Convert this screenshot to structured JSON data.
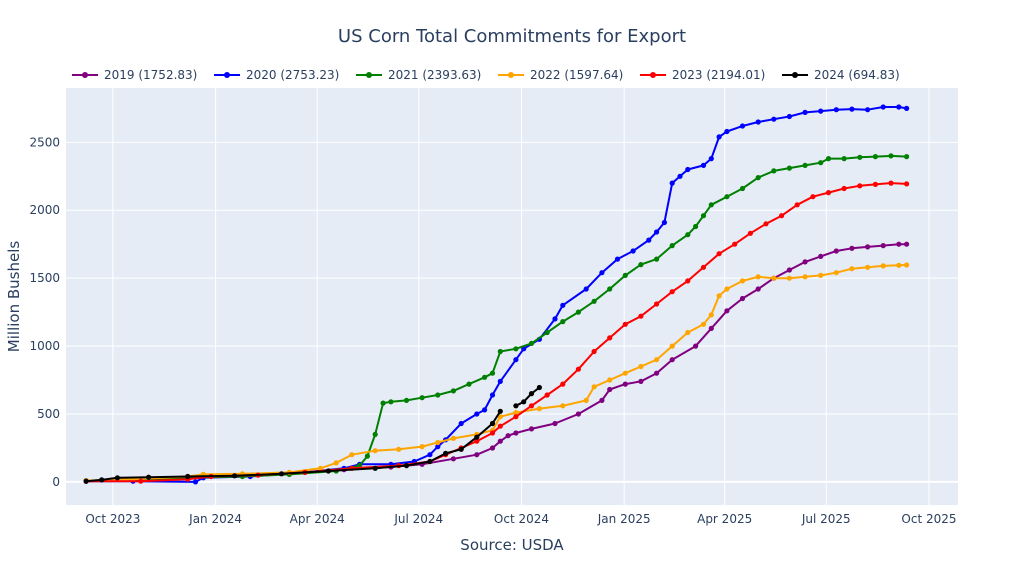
{
  "chart_data": {
    "type": "line",
    "title": "US Corn Total Commitments for Export",
    "xlabel": "Source: USDA",
    "ylabel": "Million Bushels",
    "ylim": [
      -170,
      2900
    ],
    "xrange": [
      "2023-08-20",
      "2025-10-27"
    ],
    "y_ticks": [
      0,
      500,
      1000,
      1500,
      2000,
      2500
    ],
    "x_ticks": [
      {
        "date": "2023-10-01",
        "label": "Oct 2023"
      },
      {
        "date": "2024-01-01",
        "label": "Jan 2024"
      },
      {
        "date": "2024-04-01",
        "label": "Apr 2024"
      },
      {
        "date": "2024-07-01",
        "label": "Jul 2024"
      },
      {
        "date": "2024-10-01",
        "label": "Oct 2024"
      },
      {
        "date": "2025-01-01",
        "label": "Jan 2025"
      },
      {
        "date": "2025-04-01",
        "label": "Apr 2025"
      },
      {
        "date": "2025-07-01",
        "label": "Jul 2025"
      },
      {
        "date": "2025-10-01",
        "label": "Oct 2025"
      }
    ],
    "grid": true,
    "legend": "top, horizontal",
    "series": [
      {
        "name": "2019 (1752.83)",
        "color": "#800080",
        "points": [
          [
            "2023-09-07",
            5
          ],
          [
            "2023-10-26",
            10
          ],
          [
            "2023-12-07",
            30
          ],
          [
            "2024-01-25",
            45
          ],
          [
            "2024-03-07",
            60
          ],
          [
            "2024-04-25",
            90
          ],
          [
            "2024-06-06",
            110
          ],
          [
            "2024-07-04",
            130
          ],
          [
            "2024-08-01",
            170
          ],
          [
            "2024-08-22",
            200
          ],
          [
            "2024-09-05",
            250
          ],
          [
            "2024-09-12",
            300
          ],
          [
            "2024-09-19",
            340
          ],
          [
            "2024-09-26",
            360
          ],
          [
            "2024-10-10",
            390
          ],
          [
            "2024-10-31",
            430
          ],
          [
            "2024-11-21",
            500
          ],
          [
            "2024-12-12",
            600
          ],
          [
            "2024-12-19",
            680
          ],
          [
            "2025-01-02",
            720
          ],
          [
            "2025-01-16",
            740
          ],
          [
            "2025-01-30",
            800
          ],
          [
            "2025-02-13",
            900
          ],
          [
            "2025-03-06",
            1000
          ],
          [
            "2025-03-20",
            1130
          ],
          [
            "2025-04-03",
            1260
          ],
          [
            "2025-04-17",
            1350
          ],
          [
            "2025-05-01",
            1420
          ],
          [
            "2025-05-15",
            1500
          ],
          [
            "2025-05-29",
            1560
          ],
          [
            "2025-06-12",
            1620
          ],
          [
            "2025-06-26",
            1660
          ],
          [
            "2025-07-10",
            1700
          ],
          [
            "2025-07-24",
            1720
          ],
          [
            "2025-08-07",
            1730
          ],
          [
            "2025-08-21",
            1740
          ],
          [
            "2025-09-04",
            1750
          ],
          [
            "2025-09-11",
            1750
          ]
        ]
      },
      {
        "name": "2020 (2753.23)",
        "color": "#0000ff",
        "points": [
          [
            "2023-09-07",
            5
          ],
          [
            "2023-10-19",
            5
          ],
          [
            "2023-12-14",
            0
          ],
          [
            "2023-12-21",
            30
          ],
          [
            "2024-02-01",
            40
          ],
          [
            "2024-03-21",
            70
          ],
          [
            "2024-04-25",
            100
          ],
          [
            "2024-05-09",
            130
          ],
          [
            "2024-06-06",
            130
          ],
          [
            "2024-06-27",
            150
          ],
          [
            "2024-07-11",
            200
          ],
          [
            "2024-07-18",
            260
          ],
          [
            "2024-07-25",
            310
          ],
          [
            "2024-08-08",
            430
          ],
          [
            "2024-08-22",
            500
          ],
          [
            "2024-08-29",
            530
          ],
          [
            "2024-09-05",
            640
          ],
          [
            "2024-09-12",
            740
          ],
          [
            "2024-09-26",
            900
          ],
          [
            "2024-10-03",
            980
          ],
          [
            "2024-10-17",
            1050
          ],
          [
            "2024-10-31",
            1200
          ],
          [
            "2024-11-07",
            1300
          ],
          [
            "2024-11-28",
            1420
          ],
          [
            "2024-12-12",
            1540
          ],
          [
            "2024-12-26",
            1640
          ],
          [
            "2025-01-09",
            1700
          ],
          [
            "2025-01-23",
            1780
          ],
          [
            "2025-01-30",
            1840
          ],
          [
            "2025-02-06",
            1910
          ],
          [
            "2025-02-13",
            2200
          ],
          [
            "2025-02-20",
            2250
          ],
          [
            "2025-02-27",
            2300
          ],
          [
            "2025-03-13",
            2330
          ],
          [
            "2025-03-20",
            2380
          ],
          [
            "2025-03-27",
            2540
          ],
          [
            "2025-04-03",
            2580
          ],
          [
            "2025-04-17",
            2620
          ],
          [
            "2025-05-01",
            2650
          ],
          [
            "2025-05-15",
            2670
          ],
          [
            "2025-05-29",
            2690
          ],
          [
            "2025-06-12",
            2720
          ],
          [
            "2025-06-26",
            2730
          ],
          [
            "2025-07-10",
            2740
          ],
          [
            "2025-07-24",
            2745
          ],
          [
            "2025-08-07",
            2740
          ],
          [
            "2025-08-21",
            2760
          ],
          [
            "2025-09-04",
            2760
          ],
          [
            "2025-09-11",
            2750
          ]
        ]
      },
      {
        "name": "2021 (2393.63)",
        "color": "#008000",
        "points": [
          [
            "2023-09-07",
            10
          ],
          [
            "2023-10-26",
            20
          ],
          [
            "2023-12-07",
            30
          ],
          [
            "2024-01-25",
            40
          ],
          [
            "2024-03-07",
            55
          ],
          [
            "2024-04-18",
            80
          ],
          [
            "2024-05-09",
            120
          ],
          [
            "2024-05-16",
            190
          ],
          [
            "2024-05-23",
            350
          ],
          [
            "2024-05-30",
            580
          ],
          [
            "2024-06-06",
            590
          ],
          [
            "2024-06-20",
            600
          ],
          [
            "2024-07-04",
            620
          ],
          [
            "2024-07-18",
            640
          ],
          [
            "2024-08-01",
            670
          ],
          [
            "2024-08-15",
            720
          ],
          [
            "2024-08-29",
            770
          ],
          [
            "2024-09-05",
            800
          ],
          [
            "2024-09-12",
            960
          ],
          [
            "2024-09-26",
            980
          ],
          [
            "2024-10-10",
            1020
          ],
          [
            "2024-10-24",
            1100
          ],
          [
            "2024-11-07",
            1180
          ],
          [
            "2024-11-21",
            1250
          ],
          [
            "2024-12-05",
            1330
          ],
          [
            "2024-12-19",
            1420
          ],
          [
            "2025-01-02",
            1520
          ],
          [
            "2025-01-16",
            1600
          ],
          [
            "2025-01-30",
            1640
          ],
          [
            "2025-02-13",
            1740
          ],
          [
            "2025-02-27",
            1820
          ],
          [
            "2025-03-06",
            1880
          ],
          [
            "2025-03-13",
            1960
          ],
          [
            "2025-03-20",
            2040
          ],
          [
            "2025-04-03",
            2100
          ],
          [
            "2025-04-17",
            2160
          ],
          [
            "2025-05-01",
            2240
          ],
          [
            "2025-05-15",
            2290
          ],
          [
            "2025-05-29",
            2310
          ],
          [
            "2025-06-12",
            2330
          ],
          [
            "2025-06-26",
            2350
          ],
          [
            "2025-07-03",
            2380
          ],
          [
            "2025-07-17",
            2380
          ],
          [
            "2025-07-31",
            2390
          ],
          [
            "2025-08-14",
            2395
          ],
          [
            "2025-08-28",
            2400
          ],
          [
            "2025-09-11",
            2395
          ]
        ]
      },
      {
        "name": "2022 (1597.64)",
        "color": "#ffa500",
        "points": [
          [
            "2023-09-07",
            10
          ],
          [
            "2023-10-19",
            20
          ],
          [
            "2023-12-07",
            40
          ],
          [
            "2023-12-21",
            55
          ],
          [
            "2024-01-25",
            60
          ],
          [
            "2024-03-07",
            70
          ],
          [
            "2024-04-04",
            100
          ],
          [
            "2024-04-18",
            140
          ],
          [
            "2024-05-02",
            200
          ],
          [
            "2024-05-23",
            230
          ],
          [
            "2024-06-13",
            240
          ],
          [
            "2024-07-04",
            260
          ],
          [
            "2024-07-18",
            290
          ],
          [
            "2024-08-01",
            320
          ],
          [
            "2024-08-22",
            350
          ],
          [
            "2024-09-05",
            380
          ],
          [
            "2024-09-12",
            480
          ],
          [
            "2024-09-26",
            510
          ],
          [
            "2024-10-17",
            540
          ],
          [
            "2024-11-07",
            560
          ],
          [
            "2024-11-28",
            600
          ],
          [
            "2024-12-05",
            700
          ],
          [
            "2024-12-19",
            750
          ],
          [
            "2025-01-02",
            800
          ],
          [
            "2025-01-16",
            850
          ],
          [
            "2025-01-30",
            900
          ],
          [
            "2025-02-13",
            1000
          ],
          [
            "2025-02-27",
            1100
          ],
          [
            "2025-03-13",
            1160
          ],
          [
            "2025-03-20",
            1230
          ],
          [
            "2025-03-27",
            1370
          ],
          [
            "2025-04-03",
            1420
          ],
          [
            "2025-04-17",
            1480
          ],
          [
            "2025-05-01",
            1510
          ],
          [
            "2025-05-15",
            1500
          ],
          [
            "2025-05-29",
            1500
          ],
          [
            "2025-06-12",
            1510
          ],
          [
            "2025-06-26",
            1520
          ],
          [
            "2025-07-10",
            1540
          ],
          [
            "2025-07-24",
            1570
          ],
          [
            "2025-08-07",
            1580
          ],
          [
            "2025-08-21",
            1590
          ],
          [
            "2025-09-04",
            1595
          ],
          [
            "2025-09-11",
            1597
          ]
        ]
      },
      {
        "name": "2023 (2194.01)",
        "color": "#ff0000",
        "points": [
          [
            "2023-09-07",
            5
          ],
          [
            "2023-10-26",
            5
          ],
          [
            "2023-12-07",
            20
          ],
          [
            "2023-12-28",
            40
          ],
          [
            "2024-02-08",
            50
          ],
          [
            "2024-03-21",
            70
          ],
          [
            "2024-05-02",
            100
          ],
          [
            "2024-06-13",
            120
          ],
          [
            "2024-07-11",
            150
          ],
          [
            "2024-07-25",
            200
          ],
          [
            "2024-08-08",
            250
          ],
          [
            "2024-08-22",
            300
          ],
          [
            "2024-09-05",
            360
          ],
          [
            "2024-09-12",
            410
          ],
          [
            "2024-09-26",
            480
          ],
          [
            "2024-10-10",
            560
          ],
          [
            "2024-10-24",
            640
          ],
          [
            "2024-11-07",
            720
          ],
          [
            "2024-11-21",
            830
          ],
          [
            "2024-12-05",
            960
          ],
          [
            "2024-12-19",
            1060
          ],
          [
            "2025-01-02",
            1160
          ],
          [
            "2025-01-16",
            1220
          ],
          [
            "2025-01-30",
            1310
          ],
          [
            "2025-02-13",
            1400
          ],
          [
            "2025-02-27",
            1480
          ],
          [
            "2025-03-13",
            1580
          ],
          [
            "2025-03-27",
            1680
          ],
          [
            "2025-04-10",
            1750
          ],
          [
            "2025-04-24",
            1830
          ],
          [
            "2025-05-08",
            1900
          ],
          [
            "2025-05-22",
            1960
          ],
          [
            "2025-06-05",
            2040
          ],
          [
            "2025-06-19",
            2100
          ],
          [
            "2025-07-03",
            2130
          ],
          [
            "2025-07-17",
            2160
          ],
          [
            "2025-07-31",
            2180
          ],
          [
            "2025-08-14",
            2190
          ],
          [
            "2025-08-28",
            2200
          ],
          [
            "2025-09-11",
            2194
          ]
        ]
      },
      {
        "name": "2024 (694.83)",
        "color": "#000000",
        "points": [
          [
            "2023-09-07",
            5
          ],
          [
            "2023-09-21",
            15
          ],
          [
            "2023-10-05",
            30
          ],
          [
            "2023-11-02",
            35
          ],
          [
            "2023-12-07",
            40
          ],
          [
            "2024-01-18",
            45
          ],
          [
            "2024-02-29",
            60
          ],
          [
            "2024-04-11",
            80
          ],
          [
            "2024-05-23",
            100
          ],
          [
            "2024-06-20",
            120
          ],
          [
            "2024-07-11",
            150
          ],
          [
            "2024-07-25",
            210
          ],
          [
            "2024-08-08",
            240
          ],
          [
            "2024-08-22",
            330
          ],
          [
            "2024-09-05",
            430
          ],
          [
            "2024-09-12",
            520
          ],
          null,
          [
            "2024-09-26",
            560
          ],
          [
            "2024-10-03",
            590
          ],
          [
            "2024-10-10",
            650
          ],
          [
            "2024-10-17",
            695
          ]
        ]
      }
    ]
  }
}
